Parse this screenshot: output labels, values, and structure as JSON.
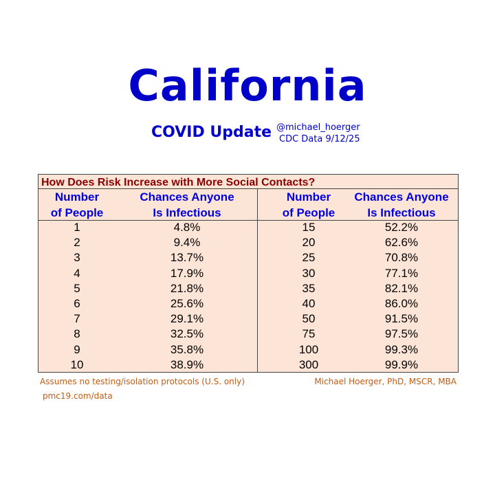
{
  "header": {
    "title": "California",
    "subtitle": "COVID Update",
    "handle": "@michael_hoerger",
    "source": "CDC Data 9/12/25"
  },
  "table": {
    "title": "How Does Risk Increase with More Social Contacts?",
    "columns": [
      [
        "Number",
        "of People"
      ],
      [
        "Chances Anyone",
        "Is Infectious"
      ],
      [
        "Number",
        "of People"
      ],
      [
        "Chances Anyone",
        "Is Infectious"
      ]
    ],
    "rows": [
      [
        "1",
        "4.8%",
        "15",
        "52.2%"
      ],
      [
        "2",
        "9.4%",
        "20",
        "62.6%"
      ],
      [
        "3",
        "13.7%",
        "25",
        "70.8%"
      ],
      [
        "4",
        "17.9%",
        "30",
        "77.1%"
      ],
      [
        "5",
        "21.8%",
        "35",
        "82.1%"
      ],
      [
        "6",
        "25.6%",
        "40",
        "86.0%"
      ],
      [
        "7",
        "29.1%",
        "50",
        "91.5%"
      ],
      [
        "8",
        "32.5%",
        "75",
        "97.5%"
      ],
      [
        "9",
        "35.8%",
        "100",
        "99.3%"
      ],
      [
        "10",
        "38.9%",
        "300",
        "99.9%"
      ]
    ]
  },
  "footer": {
    "note": "Assumes no testing/isolation protocols (U.S. only)",
    "url": "pmc19.com/data",
    "author": "Michael Hoerger, PhD, MSCR, MBA"
  }
}
